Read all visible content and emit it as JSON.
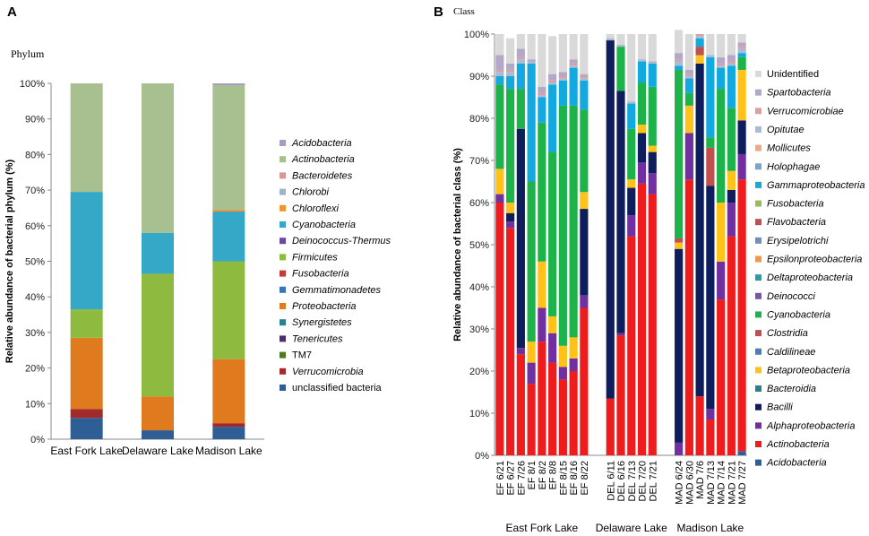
{
  "panels": {
    "a_letter": "A",
    "b_letter": "B",
    "a_level": "Phylum",
    "b_level": "Class"
  },
  "chart_data": [
    {
      "type": "bar",
      "stacked": true,
      "panel": "A",
      "title": "",
      "xlabel": "",
      "ylabel": "Relative abundance of bacterial phylum (%)",
      "ylim": [
        0,
        100
      ],
      "yticks": [
        "0%",
        "10%",
        "20%",
        "30%",
        "40%",
        "50%",
        "60%",
        "70%",
        "80%",
        "90%",
        "100%"
      ],
      "grid": false,
      "legend_position": "right",
      "categories": [
        "East Fork Lake",
        "Delaware Lake",
        "Madison Lake"
      ],
      "series": [
        {
          "name": "unclassified bacteria",
          "color": "#2f5d96",
          "values": [
            6,
            2.5,
            3.5
          ]
        },
        {
          "name": "Verrucomicrobia",
          "color": "#a32a2a",
          "values": [
            2.5,
            0,
            1
          ]
        },
        {
          "name": "TM7",
          "color": "#4e7a22",
          "values": [
            0,
            0,
            0
          ]
        },
        {
          "name": "Tenericutes",
          "color": "#4a2e6e",
          "values": [
            0,
            0,
            0
          ]
        },
        {
          "name": "Synergistetes",
          "color": "#2a7f8c",
          "values": [
            0,
            0,
            0
          ]
        },
        {
          "name": "Proteobacteria",
          "color": "#e07a1f",
          "values": [
            20,
            9.5,
            18
          ]
        },
        {
          "name": "Gemmatimonadetes",
          "color": "#3b74bd",
          "values": [
            0,
            0,
            0
          ]
        },
        {
          "name": "Fusobacteria",
          "color": "#c33a3a",
          "values": [
            0,
            0,
            0
          ]
        },
        {
          "name": "Firmicutes",
          "color": "#8ebb3f",
          "values": [
            8,
            34.5,
            27.5
          ]
        },
        {
          "name": "Deinococcus-Thermus",
          "color": "#6a4ba0",
          "values": [
            0,
            0,
            0
          ]
        },
        {
          "name": "Cyanobacteria",
          "color": "#35a8c8",
          "values": [
            33,
            11.5,
            14
          ]
        },
        {
          "name": "Chloroflexi",
          "color": "#f2932f",
          "values": [
            0,
            0,
            0.5
          ]
        },
        {
          "name": "Chlorobi",
          "color": "#9fb2cc",
          "values": [
            0,
            0,
            0
          ]
        },
        {
          "name": "Bacteroidetes",
          "color": "#d49898",
          "values": [
            0,
            0,
            0
          ]
        },
        {
          "name": "Actinobacteria",
          "color": "#a8bf90",
          "values": [
            30.5,
            42,
            35
          ]
        },
        {
          "name": "Acidobacteria",
          "color": "#a79cc2",
          "values": [
            0,
            0,
            0.5
          ]
        }
      ]
    },
    {
      "type": "bar",
      "stacked": true,
      "panel": "B",
      "title": "",
      "xlabel": "",
      "ylabel": "Relative abundance of bacterial class (%)",
      "ylim": [
        0,
        100
      ],
      "yticks": [
        "0%",
        "10%",
        "20%",
        "30%",
        "40%",
        "50%",
        "60%",
        "70%",
        "80%",
        "90%",
        "100%"
      ],
      "grid": false,
      "legend_position": "right",
      "groups": [
        {
          "label": "East Fork Lake",
          "samples": [
            "EF 6/21",
            "EF 6/27",
            "EF 7/26",
            "EF 8/1",
            "EF 8/2",
            "EF 8/8",
            "EF 8/15",
            "EF 8/16",
            "EF 8/22"
          ]
        },
        {
          "label": "Delaware Lake",
          "samples": [
            "DEL 6/11",
            "DEL 6/16",
            "DEL 7/13",
            "DEL 7/20",
            "DEL 7/21"
          ]
        },
        {
          "label": "Madison Lake",
          "samples": [
            "MAD 6/24",
            "MAD 6/30",
            "MAD 7/6",
            "MAD 7/13",
            "MAD 7/14",
            "MAD 7/21",
            "MAD 7/27"
          ]
        }
      ],
      "categories": [
        "EF 6/21",
        "EF 6/27",
        "EF 7/26",
        "EF 8/1",
        "EF 8/2",
        "EF 8/8",
        "EF 8/15",
        "EF 8/16",
        "EF 8/22",
        "DEL 6/11",
        "DEL 6/16",
        "DEL 7/13",
        "DEL 7/20",
        "DEL 7/21",
        "MAD 6/24",
        "MAD 6/30",
        "MAD 7/6",
        "MAD 7/13",
        "MAD 7/14",
        "MAD 7/21",
        "MAD 7/27"
      ],
      "series": [
        {
          "name": "Acidobacteria",
          "color": "#2f5d96",
          "values": [
            0,
            0,
            0,
            0,
            0,
            0,
            0,
            0,
            0,
            0,
            0,
            0,
            0,
            0,
            0,
            0,
            0,
            0,
            0,
            0,
            1
          ]
        },
        {
          "name": "Actinobacteria",
          "color": "#ee1c1c",
          "values": [
            60,
            54,
            24,
            17,
            27,
            22,
            18,
            20,
            35,
            13.5,
            28.5,
            52,
            64.5,
            62,
            0,
            65.5,
            14,
            8.5,
            37,
            52,
            64.5
          ]
        },
        {
          "name": "Alphaproteobacteria",
          "color": "#7030a0",
          "values": [
            2,
            1.5,
            1.5,
            5,
            8,
            7,
            3,
            3,
            3,
            0,
            0.5,
            5,
            5,
            5,
            3,
            11,
            0,
            2.5,
            9,
            8,
            6
          ]
        },
        {
          "name": "Bacilli",
          "color": "#0e1e5c",
          "values": [
            0,
            2,
            52,
            0,
            0,
            0,
            0,
            0,
            20.5,
            85,
            57.5,
            6.5,
            7,
            5,
            46,
            0,
            79,
            53,
            0,
            3,
            8
          ]
        },
        {
          "name": "Bacteroidia",
          "color": "#2a7f8c",
          "values": [
            0,
            0,
            0,
            0,
            0,
            0,
            0,
            0,
            0,
            0,
            0,
            0,
            0,
            0,
            0,
            0,
            0,
            0,
            0,
            0,
            0
          ]
        },
        {
          "name": "Betaproteobacteria",
          "color": "#ffc21a",
          "values": [
            6,
            2.5,
            0,
            5,
            11,
            4,
            5,
            5,
            4,
            0,
            0,
            2,
            2,
            1.5,
            1.5,
            6.5,
            2,
            0,
            14,
            4.5,
            12
          ]
        },
        {
          "name": "Caldilineae",
          "color": "#4a7dba",
          "values": [
            0,
            0,
            0,
            0,
            0,
            0,
            0,
            0,
            0,
            0,
            0,
            0,
            0,
            0,
            0,
            0,
            0,
            0,
            0,
            0,
            0
          ]
        },
        {
          "name": "Clostridia",
          "color": "#c0504d",
          "values": [
            0,
            0,
            0,
            0,
            0,
            0,
            0,
            0,
            0,
            0,
            0,
            0,
            0,
            0,
            1,
            0,
            0,
            9,
            0,
            0,
            0
          ]
        },
        {
          "name": "Cyanobacteria",
          "color": "#1db34a",
          "values": [
            20,
            27,
            9.5,
            38,
            33,
            39,
            57,
            55,
            19.5,
            0,
            10.5,
            12,
            10,
            14,
            40,
            3,
            0,
            2.5,
            27,
            15,
            3
          ]
        },
        {
          "name": "Deinococci",
          "color": "#7b55a5",
          "values": [
            0,
            0,
            0,
            0,
            0,
            0,
            0,
            0,
            0,
            0,
            0,
            0,
            0,
            0,
            0,
            0,
            0,
            0,
            0,
            0,
            0
          ]
        },
        {
          "name": "Deltaproteobacteria",
          "color": "#2d9aa6",
          "values": [
            0,
            0,
            0,
            0,
            0,
            0,
            0,
            0,
            0,
            0,
            0,
            0,
            0,
            0,
            0,
            0,
            0,
            0,
            0,
            0,
            0
          ]
        },
        {
          "name": "Epsilonproteobacteria",
          "color": "#f79646",
          "values": [
            0,
            0,
            0,
            0,
            0,
            0,
            0,
            0,
            0,
            0,
            0,
            0,
            0,
            0,
            0,
            0,
            0,
            0,
            0,
            0,
            0
          ]
        },
        {
          "name": "Erysipelotrichi",
          "color": "#6f8fb8",
          "values": [
            0,
            0,
            0,
            0,
            0,
            0,
            0,
            0,
            0,
            0,
            0,
            0,
            0,
            0,
            0,
            0,
            0,
            0,
            0,
            0,
            0
          ]
        },
        {
          "name": "Flavobacteria",
          "color": "#c0504d",
          "values": [
            0,
            0,
            0,
            0,
            0,
            0,
            0,
            0,
            0,
            0,
            0,
            0,
            0,
            0,
            0,
            0,
            2,
            0,
            0,
            0,
            0
          ]
        },
        {
          "name": "Fusobacteria",
          "color": "#9bbb59",
          "values": [
            0,
            0,
            0,
            0,
            0,
            0,
            0,
            0,
            0,
            0,
            0,
            0,
            0,
            0,
            0,
            0,
            0,
            0,
            0,
            0,
            0
          ]
        },
        {
          "name": "Gammaproteobacteria",
          "color": "#12a9e0",
          "values": [
            2,
            3,
            6,
            28,
            6,
            16,
            6,
            9,
            7,
            0,
            0,
            6,
            5,
            5.5,
            1,
            3.5,
            2,
            19,
            5,
            10,
            1
          ]
        },
        {
          "name": "Holophagae",
          "color": "#7ba6c9",
          "values": [
            0,
            0,
            0,
            0,
            0,
            0,
            0,
            0,
            0,
            0,
            0,
            0,
            0,
            0,
            0,
            0,
            0,
            0,
            0,
            0,
            0
          ]
        },
        {
          "name": "Mollicutes",
          "color": "#f4a582",
          "values": [
            0,
            0,
            0,
            0,
            0,
            0,
            0,
            0,
            0,
            0,
            0,
            0,
            0,
            0,
            0,
            0,
            0,
            0,
            0,
            0,
            0
          ]
        },
        {
          "name": "Opitutae",
          "color": "#a6bcd8",
          "values": [
            1,
            1,
            1,
            0.5,
            0.5,
            0.5,
            0.5,
            0.5,
            0.5,
            0.3,
            0.3,
            0.3,
            0.3,
            0.3,
            1,
            0.5,
            0.5,
            0.5,
            0.5,
            0.5,
            1
          ]
        },
        {
          "name": "Verrucomicrobiae",
          "color": "#d9a0a0",
          "values": [
            0.5,
            0.5,
            0.5,
            0,
            0.5,
            0.5,
            0.5,
            0.5,
            0.5,
            0,
            0,
            0,
            0,
            0,
            0.5,
            0.5,
            0.5,
            0,
            0.5,
            0.5,
            0.5
          ]
        },
        {
          "name": "Spartobacteria",
          "color": "#b3a8c8",
          "values": [
            3.5,
            1.5,
            2,
            0.5,
            1.5,
            1.5,
            1,
            1,
            0.5,
            0.2,
            0.2,
            0.2,
            0.2,
            0.2,
            1.5,
            1,
            0,
            0,
            1.5,
            1.5,
            1
          ]
        },
        {
          "name": "Unidentified",
          "color": "#d9d9d9",
          "values": [
            5,
            6,
            3.5,
            6,
            12.5,
            9,
            9,
            6,
            9.5,
            1,
            2.5,
            16,
            6,
            6.5,
            5.5,
            8.5,
            0,
            5,
            5.5,
            5,
            2
          ]
        }
      ]
    }
  ]
}
